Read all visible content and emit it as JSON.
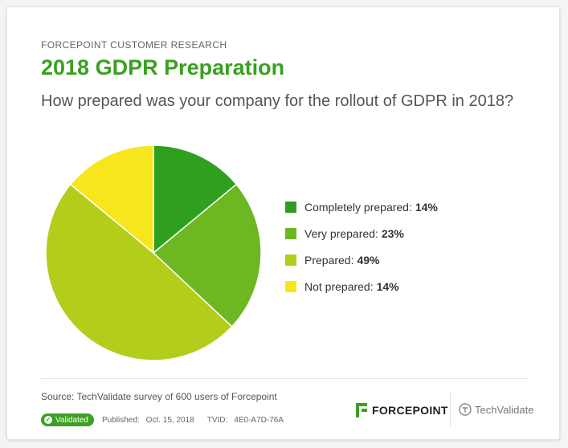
{
  "header": {
    "eyebrow": "FORCEPOINT CUSTOMER RESEARCH",
    "title": "2018 GDPR Preparation",
    "question": "How prepared was your company for the rollout of GDPR in 2018?"
  },
  "chart_data": {
    "type": "pie",
    "title": "2018 GDPR Preparation",
    "categories": [
      "Completely prepared",
      "Very prepared",
      "Prepared",
      "Not prepared"
    ],
    "values": [
      14,
      23,
      49,
      14
    ],
    "unit": "%",
    "colors": [
      "#2e9f1f",
      "#6db722",
      "#b4cd1a",
      "#f7e61c"
    ],
    "legend_position": "right"
  },
  "legend": {
    "items": [
      {
        "label": "Completely prepared:",
        "value": "14%"
      },
      {
        "label": "Very prepared:",
        "value": "23%"
      },
      {
        "label": "Prepared:",
        "value": "49%"
      },
      {
        "label": "Not prepared:",
        "value": "14%"
      }
    ]
  },
  "footer": {
    "source_label": "Source:",
    "source_text": "TechValidate survey of 600 users of Forcepoint",
    "validated_label": "Validated",
    "published_label": "Published:",
    "published_date": "Oct. 15, 2018",
    "tvid_label": "TVID:",
    "tvid_value": "4E0-A7D-76A",
    "forcepoint_logo_text": "FORCEPOINT",
    "techvalidate_logo_text": "TechValidate",
    "validated_color": "#3aa021"
  }
}
